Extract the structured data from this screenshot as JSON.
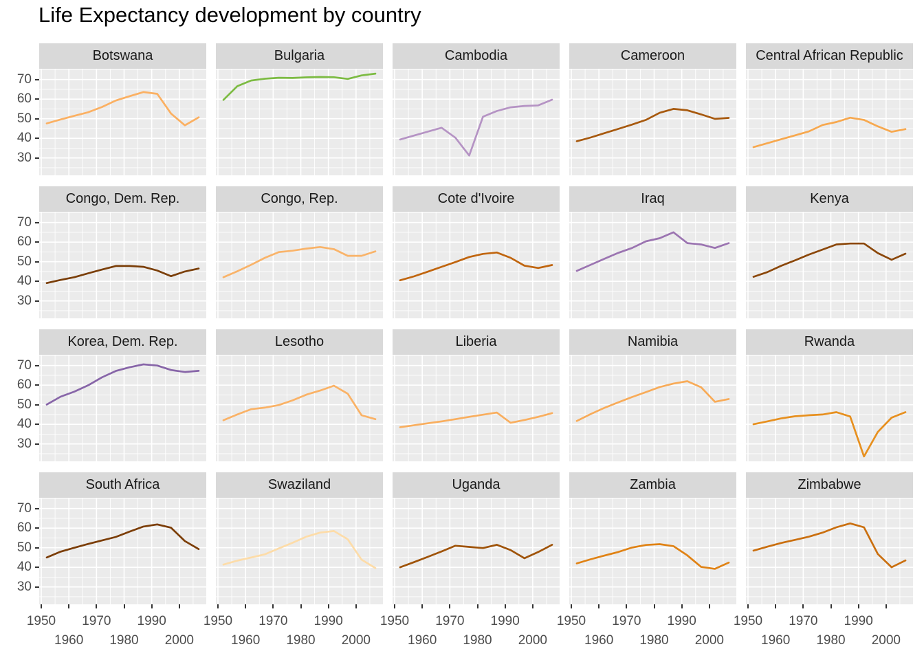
{
  "chart_data": {
    "type": "line",
    "title": "Life Expectancy development by country",
    "xlabel": "",
    "ylabel": "",
    "legend": "none",
    "grid": true,
    "x": [
      1952,
      1957,
      1962,
      1967,
      1972,
      1977,
      1982,
      1987,
      1992,
      1997,
      2002,
      2007
    ],
    "xlim": [
      1949.25,
      2009.75
    ],
    "ylim": [
      21.1,
      75.5
    ],
    "xticks": [
      1950,
      1960,
      1970,
      1980,
      1990,
      2000
    ],
    "xticks_minor": [
      1955,
      1965,
      1975,
      1985,
      1995,
      2005
    ],
    "yticks": [
      30,
      40,
      50,
      60,
      70
    ],
    "yticks_minor": [
      25,
      35,
      45,
      55,
      65,
      75
    ],
    "x_label_stagger": "two rows: 1950/1970/1990 above, 1960/1980/2000 below",
    "facets": [
      {
        "country": "Botswana",
        "color": "#FBB062",
        "values": [
          47.6,
          49.6,
          51.5,
          53.3,
          56.0,
          59.3,
          61.5,
          63.6,
          62.7,
          52.6,
          46.6,
          50.7
        ]
      },
      {
        "country": "Bulgaria",
        "color": "#7CBB42",
        "values": [
          59.6,
          66.6,
          69.5,
          70.4,
          70.9,
          70.8,
          71.1,
          71.3,
          71.2,
          70.3,
          72.1,
          73.0
        ]
      },
      {
        "country": "Cambodia",
        "color": "#B593C4",
        "values": [
          39.4,
          41.4,
          43.4,
          45.4,
          40.3,
          31.2,
          51.0,
          53.9,
          55.8,
          56.5,
          56.8,
          59.7
        ]
      },
      {
        "country": "Cameroon",
        "color": "#A7590E",
        "values": [
          38.5,
          40.4,
          42.6,
          44.8,
          47.0,
          49.4,
          53.0,
          55.0,
          54.3,
          52.2,
          49.9,
          50.4
        ]
      },
      {
        "country": "Central African Republic",
        "color": "#F7A84E",
        "values": [
          35.5,
          37.5,
          39.5,
          41.5,
          43.5,
          46.8,
          48.3,
          50.5,
          49.4,
          46.1,
          43.3,
          44.7
        ]
      },
      {
        "country": "Congo, Dem. Rep.",
        "color": "#7A3E08",
        "values": [
          39.1,
          40.7,
          42.1,
          44.1,
          46.0,
          47.8,
          47.8,
          47.4,
          45.5,
          42.6,
          45.0,
          46.5
        ]
      },
      {
        "country": "Congo, Rep.",
        "color": "#F9B369",
        "values": [
          42.1,
          45.1,
          48.4,
          52.0,
          54.9,
          55.6,
          56.7,
          57.5,
          56.4,
          53.0,
          53.0,
          55.3
        ]
      },
      {
        "country": "Cote d'Ivoire",
        "color": "#C0650E",
        "values": [
          40.5,
          42.5,
          44.9,
          47.4,
          49.8,
          52.4,
          54.0,
          54.7,
          52.0,
          48.0,
          46.8,
          48.3
        ]
      },
      {
        "country": "Iraq",
        "color": "#9B74B1",
        "values": [
          45.3,
          48.4,
          51.5,
          54.5,
          57.0,
          60.4,
          62.0,
          65.0,
          59.5,
          58.8,
          57.0,
          59.5
        ]
      },
      {
        "country": "Kenya",
        "color": "#8B4709",
        "values": [
          42.3,
          44.7,
          47.9,
          50.7,
          53.6,
          56.2,
          58.8,
          59.3,
          59.3,
          54.4,
          51.0,
          54.1
        ]
      },
      {
        "country": "Korea, Dem. Rep.",
        "color": "#8765A8",
        "values": [
          50.1,
          54.1,
          56.7,
          59.9,
          64.0,
          67.2,
          69.1,
          70.6,
          70.0,
          67.7,
          66.7,
          67.3
        ]
      },
      {
        "country": "Lesotho",
        "color": "#FAB266",
        "values": [
          42.1,
          45.0,
          47.7,
          48.5,
          49.8,
          52.2,
          55.1,
          57.2,
          59.7,
          55.6,
          44.6,
          42.6
        ]
      },
      {
        "country": "Liberia",
        "color": "#F9AE5E",
        "values": [
          38.5,
          39.5,
          40.5,
          41.5,
          42.6,
          43.8,
          44.9,
          46.0,
          40.8,
          42.2,
          43.8,
          45.7
        ]
      },
      {
        "country": "Namibia",
        "color": "#F8AB58",
        "values": [
          41.7,
          45.2,
          48.4,
          51.2,
          53.9,
          56.4,
          59.0,
          60.8,
          62.0,
          58.9,
          51.5,
          52.9
        ]
      },
      {
        "country": "Rwanda",
        "color": "#E7901F",
        "values": [
          40.0,
          41.5,
          43.0,
          44.1,
          44.6,
          45.0,
          46.2,
          44.0,
          23.6,
          36.1,
          43.4,
          46.2
        ]
      },
      {
        "country": "South Africa",
        "color": "#7B3D06",
        "values": [
          45.0,
          48.0,
          50.0,
          51.9,
          53.7,
          55.5,
          58.2,
          60.8,
          61.9,
          60.2,
          53.4,
          49.3
        ]
      },
      {
        "country": "Swaziland",
        "color": "#FDDCA8",
        "values": [
          41.4,
          43.4,
          45.0,
          46.6,
          49.6,
          52.5,
          55.6,
          57.7,
          58.5,
          54.3,
          43.9,
          39.6
        ]
      },
      {
        "country": "Uganda",
        "color": "#9F5308",
        "values": [
          40.0,
          42.6,
          45.3,
          48.1,
          51.0,
          50.4,
          49.8,
          51.5,
          48.8,
          44.6,
          47.8,
          51.5
        ]
      },
      {
        "country": "Zambia",
        "color": "#E08214",
        "values": [
          42.0,
          44.1,
          46.0,
          47.8,
          50.1,
          51.4,
          51.8,
          50.8,
          46.1,
          40.2,
          39.2,
          42.4
        ]
      },
      {
        "country": "Zimbabwe",
        "color": "#CA6F0F",
        "values": [
          48.5,
          50.5,
          52.4,
          54.0,
          55.6,
          57.7,
          60.4,
          62.4,
          60.4,
          46.8,
          40.0,
          43.5
        ]
      }
    ]
  },
  "style": {
    "panel_bg": "#EBEBEB",
    "strip_bg": "#D9D9D9",
    "grid_color": "#FFFFFF",
    "strip_text_color": "#1A1A1A",
    "axis_text_color": "#4D4D4D",
    "tick_color": "#333333",
    "title_color": "#000000"
  }
}
